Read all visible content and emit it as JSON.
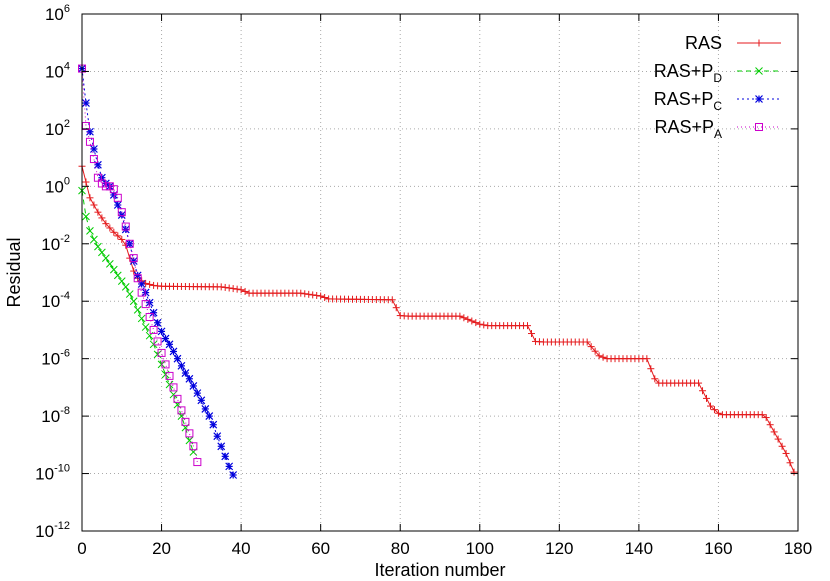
{
  "chart_data": {
    "type": "line",
    "title": "",
    "xlabel": "Iteration number",
    "ylabel": "Residual",
    "xlim": [
      0,
      180
    ],
    "ylim_log10": [
      -12,
      6
    ],
    "y_scale": "log",
    "grid": true,
    "legend_position": "top-right",
    "x_ticks": [
      {
        "value": 0,
        "label": "0"
      },
      {
        "value": 20,
        "label": "20"
      },
      {
        "value": 40,
        "label": "40"
      },
      {
        "value": 60,
        "label": "60"
      },
      {
        "value": 80,
        "label": "80"
      },
      {
        "value": 100,
        "label": "100"
      },
      {
        "value": 120,
        "label": "120"
      },
      {
        "value": 140,
        "label": "140"
      },
      {
        "value": 160,
        "label": "160"
      },
      {
        "value": 180,
        "label": "180"
      }
    ],
    "y_ticks": [
      {
        "value": 6,
        "base": "10",
        "exp": "6"
      },
      {
        "value": 4,
        "base": "10",
        "exp": "4"
      },
      {
        "value": 2,
        "base": "10",
        "exp": "2"
      },
      {
        "value": 0,
        "base": "10",
        "exp": "0"
      },
      {
        "value": -2,
        "base": "10",
        "exp": "-2"
      },
      {
        "value": -4,
        "base": "10",
        "exp": "-4"
      },
      {
        "value": -6,
        "base": "10",
        "exp": "-6"
      },
      {
        "value": -8,
        "base": "10",
        "exp": "-8"
      },
      {
        "value": -10,
        "base": "10",
        "exp": "-10"
      },
      {
        "value": -12,
        "base": "10",
        "exp": "-12"
      }
    ],
    "series": [
      {
        "name": "RAS",
        "label_main": "RAS",
        "label_sub": "",
        "color": "#e41a1c",
        "marker": "plus",
        "dash": "",
        "keypoints": [
          [
            0,
            0.7
          ],
          [
            2,
            -0.4
          ],
          [
            4,
            -0.9
          ],
          [
            6,
            -1.3
          ],
          [
            8,
            -1.6
          ],
          [
            10,
            -1.85
          ],
          [
            11,
            -2.05
          ],
          [
            12,
            -2.5
          ],
          [
            13,
            -2.95
          ],
          [
            14,
            -3.2
          ],
          [
            16,
            -3.38
          ],
          [
            18,
            -3.45
          ],
          [
            20,
            -3.48
          ],
          [
            35,
            -3.5
          ],
          [
            40,
            -3.6
          ],
          [
            42,
            -3.72
          ],
          [
            55,
            -3.72
          ],
          [
            60,
            -3.82
          ],
          [
            62,
            -3.92
          ],
          [
            78,
            -3.95
          ],
          [
            80,
            -4.5
          ],
          [
            82,
            -4.52
          ],
          [
            95,
            -4.52
          ],
          [
            100,
            -4.8
          ],
          [
            102,
            -4.85
          ],
          [
            112,
            -4.85
          ],
          [
            114,
            -5.4
          ],
          [
            116,
            -5.42
          ],
          [
            127,
            -5.42
          ],
          [
            130,
            -5.9
          ],
          [
            132,
            -6
          ],
          [
            142,
            -6
          ],
          [
            144,
            -6.7
          ],
          [
            145,
            -6.85
          ],
          [
            155,
            -6.85
          ],
          [
            158,
            -7.65
          ],
          [
            160,
            -7.9
          ],
          [
            161,
            -7.95
          ],
          [
            171,
            -7.95
          ],
          [
            172,
            -8.05
          ],
          [
            175,
            -8.8
          ],
          [
            177,
            -9.3
          ],
          [
            179,
            -9.95
          ]
        ]
      },
      {
        "name": "RAS+P_D",
        "label_main": "RAS+P",
        "label_sub": "D",
        "color": "#00cc00",
        "marker": "x",
        "dash": "5,4",
        "keypoints": [
          [
            0,
            -0.15
          ],
          [
            1,
            -1.05
          ],
          [
            2,
            -1.55
          ],
          [
            3,
            -1.85
          ],
          [
            4,
            -2.1
          ],
          [
            5,
            -2.3
          ],
          [
            6,
            -2.5
          ],
          [
            7,
            -2.7
          ],
          [
            8,
            -2.9
          ],
          [
            9,
            -3.1
          ],
          [
            10,
            -3.3
          ],
          [
            11,
            -3.5
          ],
          [
            12,
            -3.75
          ],
          [
            13,
            -4.0
          ],
          [
            14,
            -4.3
          ],
          [
            15,
            -4.6
          ],
          [
            16,
            -4.9
          ],
          [
            17,
            -5.2
          ],
          [
            18,
            -5.5
          ],
          [
            19,
            -5.85
          ],
          [
            20,
            -6.2
          ],
          [
            21,
            -6.55
          ],
          [
            22,
            -6.9
          ],
          [
            23,
            -7.25
          ],
          [
            24,
            -7.6
          ],
          [
            25,
            -8.0
          ],
          [
            26,
            -8.4
          ],
          [
            27,
            -8.85
          ],
          [
            28,
            -9.25
          ]
        ]
      },
      {
        "name": "RAS+P_C",
        "label_main": "RAS+P",
        "label_sub": "C",
        "color": "#0000dd",
        "marker": "star",
        "dash": "2,3",
        "keypoints": [
          [
            0,
            4.1
          ],
          [
            1,
            2.9
          ],
          [
            2,
            1.9
          ],
          [
            3,
            1.3
          ],
          [
            4,
            0.75
          ],
          [
            5,
            0.3
          ],
          [
            6,
            0.1
          ],
          [
            7,
            0.0
          ],
          [
            8,
            -0.3
          ],
          [
            9,
            -0.65
          ],
          [
            10,
            -1.0
          ],
          [
            11,
            -1.5
          ],
          [
            12,
            -2.0
          ],
          [
            13,
            -2.6
          ],
          [
            14,
            -3.1
          ],
          [
            15,
            -3.4
          ],
          [
            16,
            -3.7
          ],
          [
            17,
            -4.05
          ],
          [
            18,
            -4.4
          ],
          [
            19,
            -4.75
          ],
          [
            20,
            -5.05
          ],
          [
            21,
            -5.3
          ],
          [
            22,
            -5.5
          ],
          [
            23,
            -5.75
          ],
          [
            24,
            -6.0
          ],
          [
            25,
            -6.25
          ],
          [
            26,
            -6.5
          ],
          [
            27,
            -6.7
          ],
          [
            28,
            -6.95
          ],
          [
            29,
            -7.2
          ],
          [
            30,
            -7.45
          ],
          [
            31,
            -7.75
          ],
          [
            32,
            -8.0
          ],
          [
            33,
            -8.3
          ],
          [
            34,
            -8.7
          ],
          [
            35,
            -9.05
          ],
          [
            36,
            -9.4
          ],
          [
            37,
            -9.75
          ],
          [
            38,
            -10.05
          ]
        ]
      },
      {
        "name": "RAS+P_A",
        "label_main": "RAS+P",
        "label_sub": "A",
        "color": "#cc00cc",
        "marker": "square",
        "dash": "1,3",
        "keypoints": [
          [
            0,
            4.1
          ],
          [
            1,
            2.1
          ],
          [
            2,
            1.55
          ],
          [
            3,
            0.95
          ],
          [
            4,
            0.3
          ],
          [
            5,
            0.1
          ],
          [
            6,
            0.0
          ],
          [
            7,
            0.0
          ],
          [
            8,
            -0.1
          ],
          [
            9,
            -0.4
          ],
          [
            10,
            -0.9
          ],
          [
            11,
            -1.4
          ],
          [
            12,
            -2.0
          ],
          [
            13,
            -2.5
          ],
          [
            14,
            -3.2
          ],
          [
            15,
            -3.7
          ],
          [
            16,
            -4.1
          ],
          [
            17,
            -4.55
          ],
          [
            18,
            -5.0
          ],
          [
            19,
            -5.4
          ],
          [
            20,
            -5.8
          ],
          [
            21,
            -6.2
          ],
          [
            22,
            -6.6
          ],
          [
            23,
            -7.0
          ],
          [
            24,
            -7.4
          ],
          [
            25,
            -7.8
          ],
          [
            26,
            -8.2
          ],
          [
            27,
            -8.6
          ],
          [
            28,
            -9.05
          ],
          [
            29,
            -9.6
          ]
        ]
      }
    ]
  }
}
